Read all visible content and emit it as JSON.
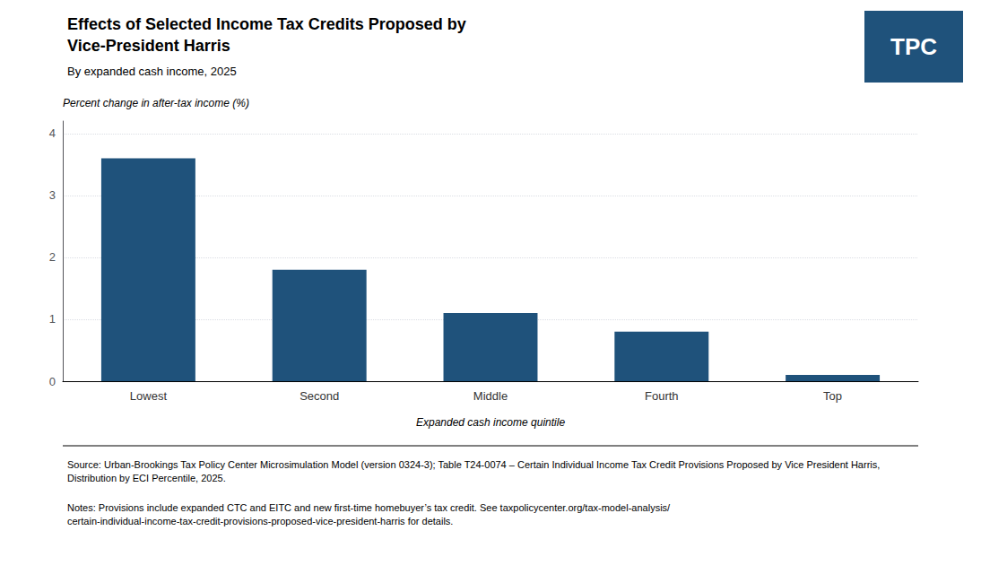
{
  "chart_data": {
    "type": "bar",
    "title": "Effects of Selected Income Tax Credits Proposed by\nVice-President Harris",
    "subtitle": "By expanded cash income, 2025",
    "x_label": "Expanded cash income quintile",
    "y_label": "Percent change in after-tax income (%)",
    "categories": [
      "Lowest",
      "Second",
      "Middle",
      "Fourth",
      "Top"
    ],
    "values": [
      3.6,
      1.8,
      1.1,
      0.8,
      0.1
    ],
    "color": "#1F527B",
    "ylim": [
      0,
      4.2
    ],
    "yticks": [
      0,
      1,
      2,
      3,
      4
    ],
    "grid": true,
    "annotations": [
      "Source: Urban-Brookings Tax Policy Center Microsimulation Model (version 0324-3); Table T24-0074 – Certain Individual Income Tax Credit Provisions Proposed by Vice President Harris, Distribution by ECI Percentile, 2025.",
      "Notes: Provisions include expanded CTC and EITC and new first-time homebuyer’s tax credit. See taxpolicycenter.org/tax-model-analysis/certain-individual-income-tax-credit-provisions-proposed-vice-president-harris for details.",
      "TPC"
    ]
  }
}
